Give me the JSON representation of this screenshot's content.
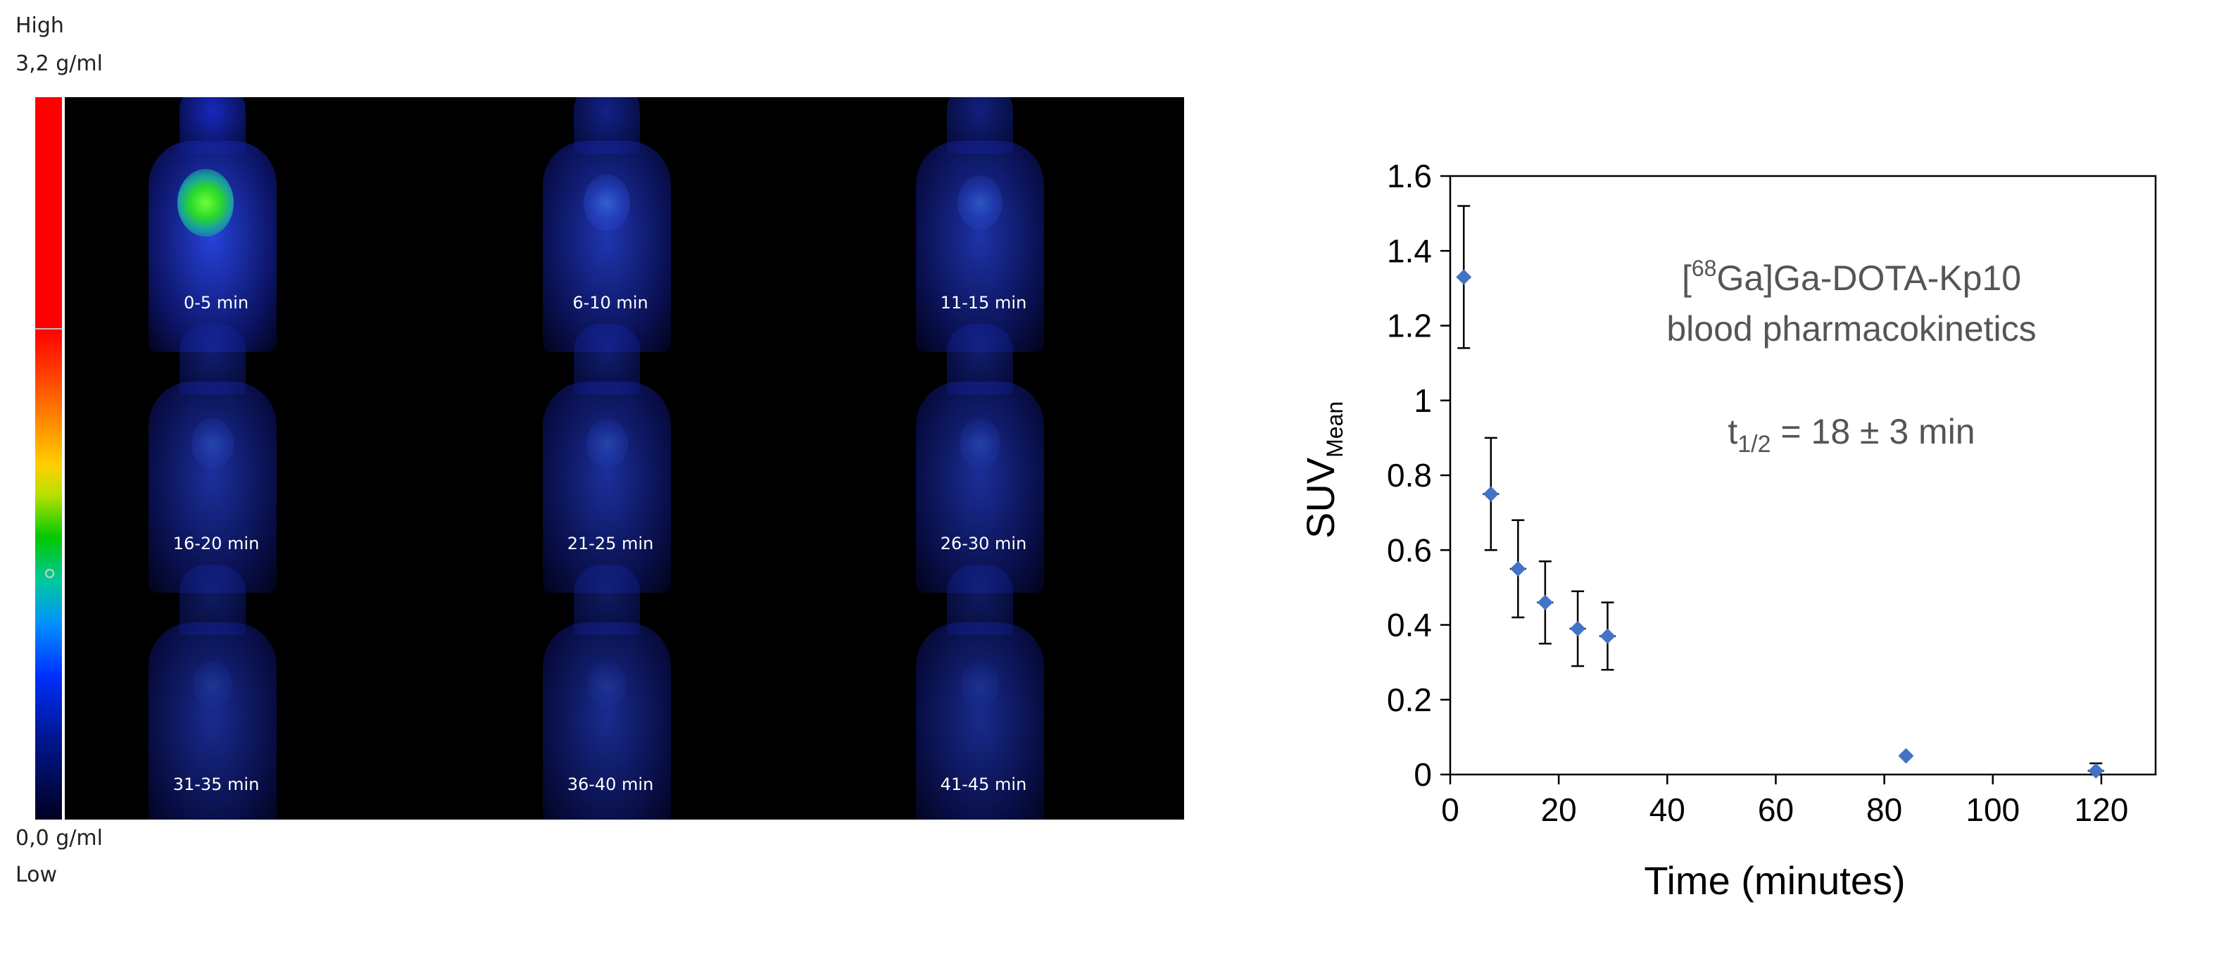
{
  "scale": {
    "top_line1": "High",
    "top_line2": "3,2 g/ml",
    "bottom_line1": "0,0 g/ml",
    "bottom_line2": "Low"
  },
  "pet_frames": [
    {
      "label": "0-5 min",
      "intensity": 1.0
    },
    {
      "label": "6-10 min",
      "intensity": 0.55
    },
    {
      "label": "11-15 min",
      "intensity": 0.45
    },
    {
      "label": "16-20 min",
      "intensity": 0.32
    },
    {
      "label": "21-25 min",
      "intensity": 0.3
    },
    {
      "label": "26-30 min",
      "intensity": 0.27
    },
    {
      "label": "31-35 min",
      "intensity": 0.18
    },
    {
      "label": "36-40 min",
      "intensity": 0.17
    },
    {
      "label": "41-45 min",
      "intensity": 0.15
    }
  ],
  "colors": {
    "marker": "#4472c4",
    "errorbar": "#000000",
    "annotation": "#555555"
  },
  "chart_data": {
    "type": "scatter",
    "title": "",
    "xlabel": "Time (minutes)",
    "ylabel_main": "SUV",
    "ylabel_sub": "Mean",
    "xlim": [
      0,
      130
    ],
    "ylim": [
      0,
      1.6
    ],
    "xticks": [
      "0",
      "20",
      "40",
      "60",
      "80",
      "100",
      "120"
    ],
    "yticks": [
      "0",
      "0.2",
      "0.4",
      "0.6",
      "0.8",
      "1",
      "1.2",
      "1.4",
      "1.6"
    ],
    "grid": false,
    "annotation": {
      "line1_sup": "68",
      "line1_pre": "[",
      "line1_post": "Ga]Ga-DOTA-Kp10",
      "line2": "blood pharmacokinetics",
      "line3_pre": "t",
      "line3_sub": "1/2",
      "line3_post": " = 18 ± 3 min"
    },
    "series": [
      {
        "x": [
          2.5,
          7.5,
          12.5,
          17.5,
          23.5,
          29,
          84,
          119
        ],
        "y": [
          1.33,
          0.75,
          0.55,
          0.46,
          0.39,
          0.37,
          0.05,
          0.01
        ],
        "yerr": [
          0.19,
          0.15,
          0.13,
          0.11,
          0.1,
          0.09,
          0.0,
          0.02
        ],
        "xerr": [
          0,
          1.5,
          1.5,
          1.5,
          1.5,
          1.5,
          0,
          1.5
        ]
      }
    ]
  }
}
